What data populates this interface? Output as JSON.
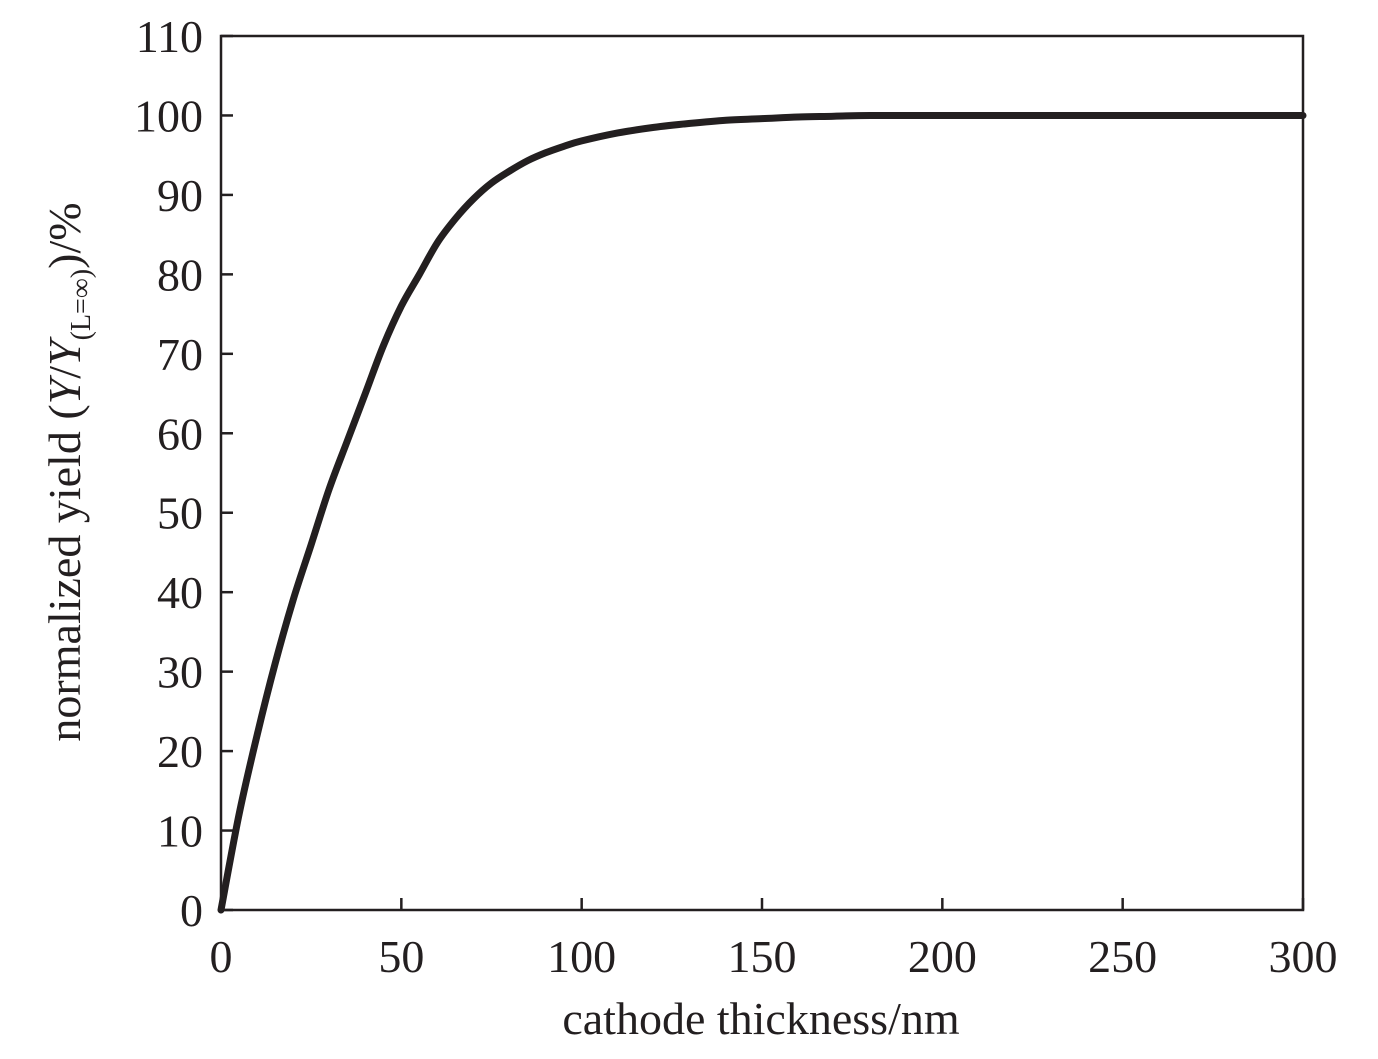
{
  "chart_data": {
    "type": "line",
    "title": "",
    "xlabel": "cathode thickness/nm",
    "ylabel": {
      "prefix": "normalized yield (",
      "y1": "Y",
      "slash": "/",
      "y2": "Y",
      "subscript": "(L=∞)",
      "suffix": ")/%"
    },
    "xlim": [
      0,
      300
    ],
    "ylim": [
      0,
      110
    ],
    "xticks": [
      0,
      50,
      100,
      150,
      200,
      250,
      300
    ],
    "yticks": [
      0,
      10,
      20,
      30,
      40,
      50,
      60,
      70,
      80,
      90,
      100,
      110
    ],
    "xtick_labels": [
      "0",
      "50",
      "100",
      "150",
      "200",
      "250",
      "300"
    ],
    "ytick_labels": [
      "0",
      "10",
      "20",
      "30",
      "40",
      "50",
      "60",
      "70",
      "80",
      "90",
      "100",
      "110"
    ],
    "grid": false,
    "legend": "none",
    "series": [
      {
        "color": "#231f20",
        "x": [
          0,
          5,
          10,
          15,
          20,
          25,
          30,
          35,
          40,
          45,
          50,
          55,
          60,
          65,
          70,
          75,
          80,
          85,
          90,
          95,
          100,
          110,
          120,
          130,
          140,
          150,
          160,
          170,
          180,
          200,
          220,
          250,
          280,
          300
        ],
        "y": [
          0,
          12,
          22,
          31,
          39,
          46,
          53,
          59,
          65,
          71,
          76,
          80,
          84,
          87,
          89.5,
          91.5,
          93,
          94.3,
          95.3,
          96.1,
          96.8,
          97.8,
          98.5,
          99,
          99.4,
          99.6,
          99.8,
          99.9,
          100,
          100,
          100,
          100,
          100,
          100
        ]
      }
    ]
  }
}
